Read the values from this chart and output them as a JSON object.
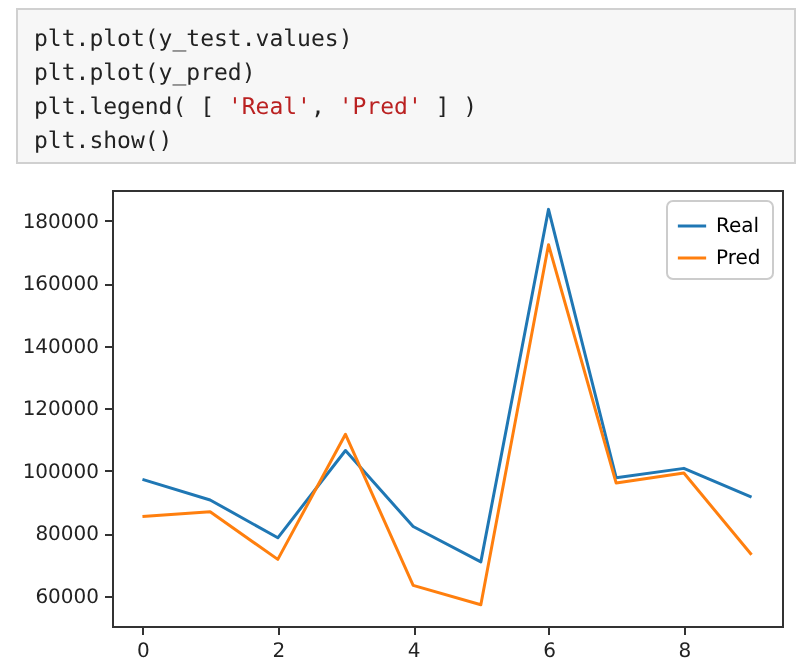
{
  "chart_data": {
    "type": "line",
    "annotations": [
      "plt.plot(y_test.values)\nplt.plot(y_pred)\nplt.legend( [ 'Real', 'Pred' ] )\nplt.show()"
    ],
    "x": [
      0,
      1,
      2,
      3,
      4,
      5,
      6,
      7,
      8,
      9
    ],
    "series": [
      {
        "name": "Real",
        "color": "#1f77b4",
        "values": [
          97300,
          90700,
          78600,
          106500,
          82200,
          70900,
          183600,
          97800,
          100800,
          91600
        ]
      },
      {
        "name": "Pred",
        "color": "#ff7f0e",
        "values": [
          85400,
          86900,
          71700,
          111700,
          63400,
          57200,
          172300,
          96100,
          99300,
          73200
        ]
      }
    ],
    "xlim": [
      -0.45,
      9.45
    ],
    "xticks": [
      0,
      2,
      4,
      6,
      8
    ],
    "ylim": [
      50400,
      189800
    ],
    "yticks": [
      60000,
      80000,
      100000,
      120000,
      140000,
      160000,
      180000
    ],
    "grid": false,
    "legend": "top right",
    "marker": "none",
    "line_style": "solid"
  }
}
